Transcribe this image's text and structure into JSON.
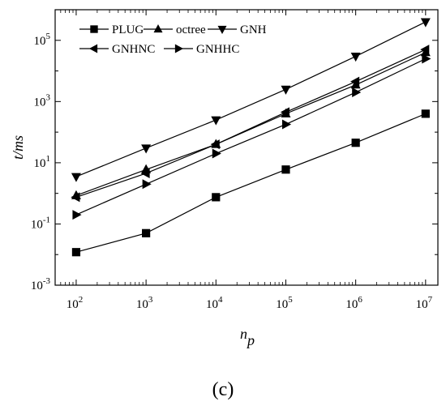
{
  "chart_data": {
    "type": "line",
    "xlabel": "n",
    "xlabel_sub": "p",
    "ylabel": "t/ms",
    "x_scale": "log",
    "y_scale": "log",
    "xlim": [
      50,
      15000000
    ],
    "ylim": [
      0.001,
      1000000
    ],
    "x_ticks": [
      {
        "value": 100,
        "base": "10",
        "exp": "2"
      },
      {
        "value": 1000,
        "base": "10",
        "exp": "3"
      },
      {
        "value": 10000,
        "base": "10",
        "exp": "4"
      },
      {
        "value": 100000,
        "base": "10",
        "exp": "5"
      },
      {
        "value": 1000000,
        "base": "10",
        "exp": "6"
      },
      {
        "value": 10000000,
        "base": "10",
        "exp": "7"
      }
    ],
    "y_ticks": [
      {
        "value": 0.001,
        "base": "10",
        "exp": "-3"
      },
      {
        "value": 0.1,
        "base": "10",
        "exp": "-1"
      },
      {
        "value": 10,
        "base": "10",
        "exp": "1"
      },
      {
        "value": 1000,
        "base": "10",
        "exp": "3"
      },
      {
        "value": 100000,
        "base": "10",
        "exp": "5"
      }
    ],
    "grid": false,
    "legend_position": "top-left",
    "x": [
      100,
      1000,
      10000,
      100000,
      1000000,
      10000000
    ],
    "series": [
      {
        "name": "PLUG",
        "marker": "square",
        "values": [
          0.012,
          0.05,
          0.75,
          6,
          45,
          400
        ]
      },
      {
        "name": "octree",
        "marker": "triangle-up",
        "values": [
          0.85,
          6,
          40,
          400,
          3500,
          40000
        ]
      },
      {
        "name": "GNH",
        "marker": "triangle-down",
        "values": [
          3.5,
          30,
          250,
          2500,
          30000,
          400000
        ]
      },
      {
        "name": "GNHNC",
        "marker": "triangle-left",
        "values": [
          0.75,
          4.5,
          40,
          450,
          4500,
          50000
        ]
      },
      {
        "name": "GNHHC",
        "marker": "triangle-right",
        "values": [
          0.2,
          2,
          20,
          180,
          2000,
          25000
        ]
      }
    ]
  },
  "caption": "(c)"
}
